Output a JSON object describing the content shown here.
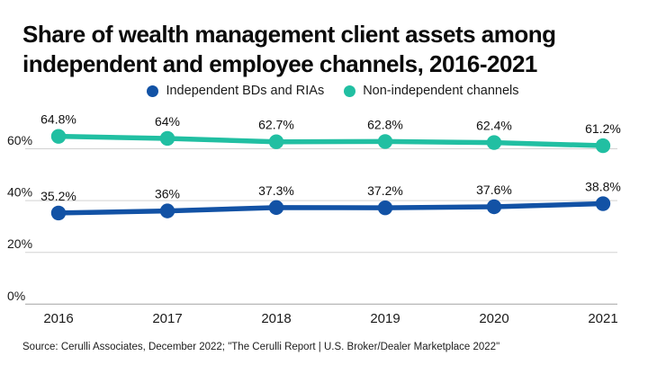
{
  "title": {
    "line1": "Share of wealth management client assets among",
    "line2": "independent and employee channels, 2016-2021"
  },
  "legend": {
    "items": [
      {
        "label": "Independent BDs and RIAs",
        "color": "#1252A5"
      },
      {
        "label": "Non-independent channels",
        "color": "#21BFA2"
      }
    ]
  },
  "source": "Source: Cerulli Associates, December 2022; \"The Cerulli Report | U.S. Broker/Dealer Marketplace 2022\"",
  "colors": {
    "independent_blue": "#1252A5",
    "non_independent_teal": "#21BFA2",
    "gridline": "#d2d2d2",
    "axis_line": "#a3a3a3",
    "text": "#1a1a1a"
  },
  "chart_data": {
    "type": "line",
    "title": "Share of wealth management client assets among independent and employee channels, 2016-2021",
    "x": [
      "2016",
      "2017",
      "2018",
      "2019",
      "2020",
      "2021"
    ],
    "series": [
      {
        "name": "Independent BDs and RIAs",
        "color": "#1252A5",
        "values": [
          35.2,
          36,
          37.3,
          37.2,
          37.6,
          38.8
        ],
        "labels": [
          "35.2%",
          "36%",
          "37.3%",
          "37.2%",
          "37.6%",
          "38.8%"
        ]
      },
      {
        "name": "Non-independent channels",
        "color": "#21BFA2",
        "values": [
          64.8,
          64,
          62.7,
          62.8,
          62.4,
          61.2
        ],
        "labels": [
          "64.8%",
          "64%",
          "62.7%",
          "62.8%",
          "62.4%",
          "61.2%"
        ]
      }
    ],
    "xlabel": "",
    "ylabel": "",
    "ylim": [
      0,
      80
    ],
    "yticks": [
      {
        "value": 0,
        "label": "0%"
      },
      {
        "value": 20,
        "label": "20%"
      },
      {
        "value": 40,
        "label": "40%"
      },
      {
        "value": 60,
        "label": "60%"
      }
    ],
    "grid": true,
    "legend_position": "top",
    "marker": "circle",
    "data_labels": true
  }
}
